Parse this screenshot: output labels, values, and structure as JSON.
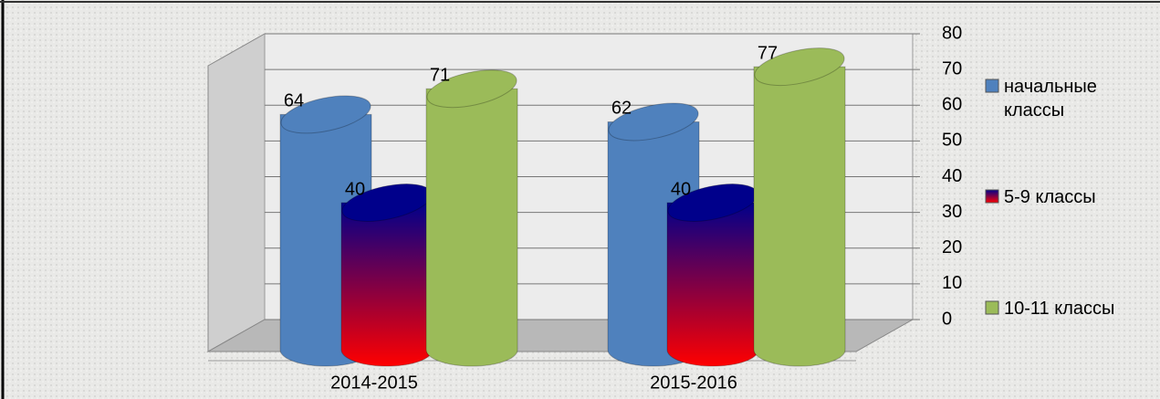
{
  "chart_data": {
    "type": "cylinder",
    "categories": [
      "2014-2015",
      "2015-2016"
    ],
    "series": [
      {
        "name": "начальные классы",
        "color": "#4f81bd",
        "values": [
          64,
          62
        ]
      },
      {
        "name": "5-9 классы",
        "color": "#cc0033",
        "gradient": [
          "#00008b",
          "#ff0000"
        ],
        "values": [
          40,
          40
        ]
      },
      {
        "name": "10-11 классы",
        "color": "#9bbb59",
        "values": [
          71,
          77
        ]
      }
    ],
    "ylim": [
      0,
      80
    ],
    "yticks": [
      0,
      10,
      20,
      30,
      40,
      50,
      60,
      70,
      80
    ],
    "grid": true,
    "legend": "right"
  }
}
